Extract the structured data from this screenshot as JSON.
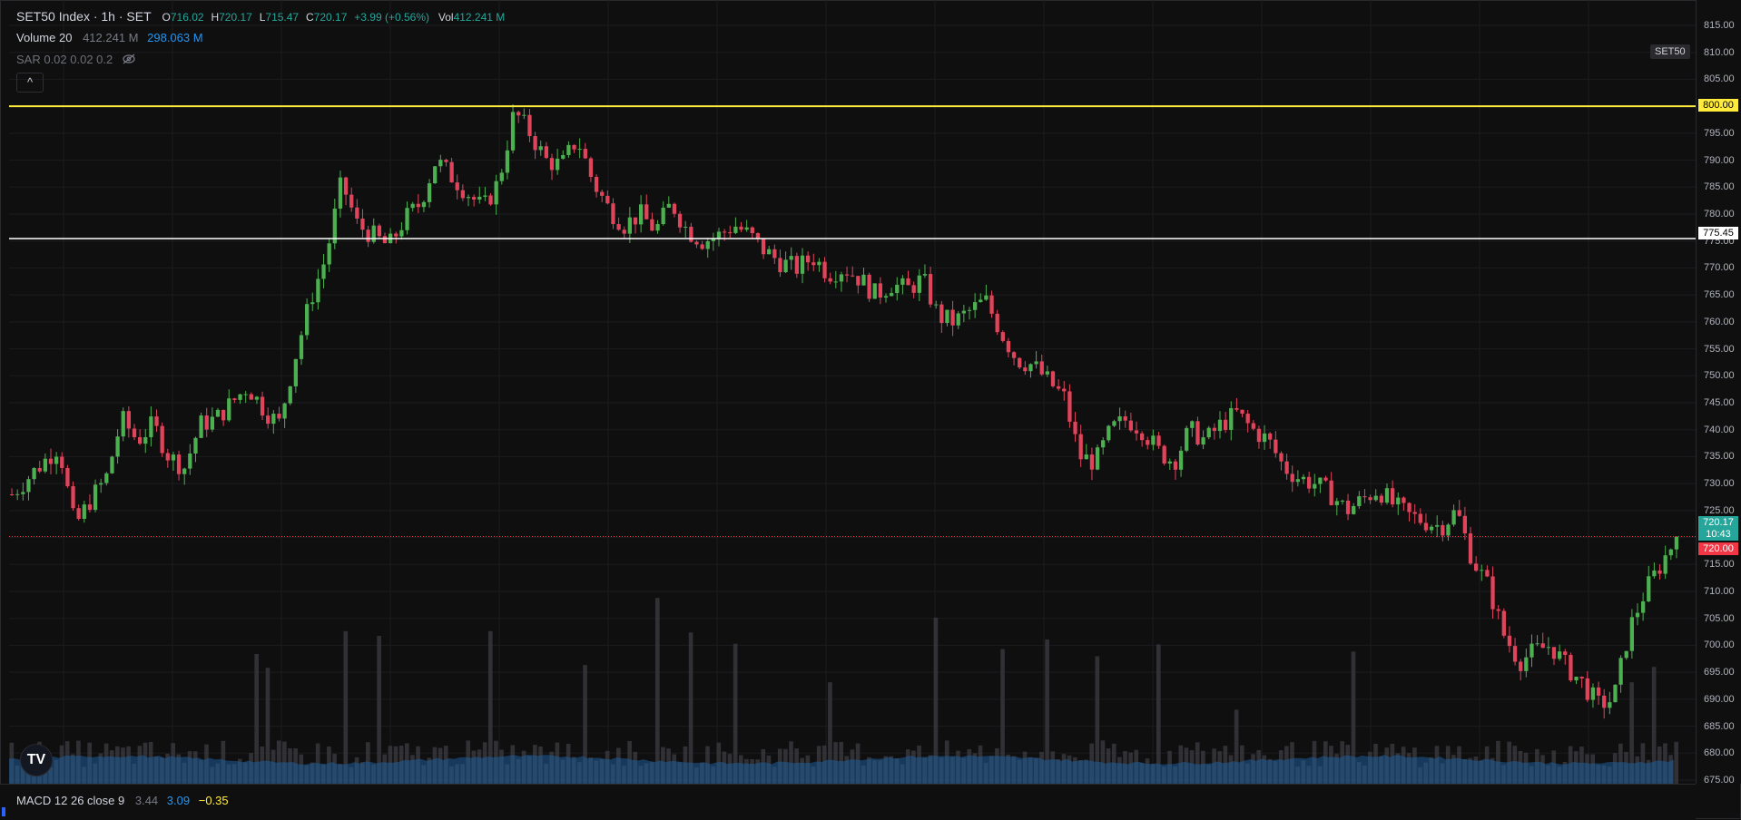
{
  "legend": {
    "symbol": "SET50 Index · 1h · SET",
    "o_label": "O",
    "o_val": "716.02",
    "h_label": "H",
    "h_val": "720.17",
    "l_label": "L",
    "l_val": "715.47",
    "c_label": "C",
    "c_val": "720.17",
    "change": "+3.99 (+0.56%)",
    "vol_label": "Vol",
    "vol_val": "412.241 M",
    "volume_ind": "Volume 20",
    "volume_v1": "412.241 M",
    "volume_v2": "298.063 M",
    "sar": "SAR 0.02 0.02 0.2",
    "collapse_icon": "^"
  },
  "symbol_tag": "SET50",
  "price_axis": {
    "ticks": [
      "815.00",
      "810.00",
      "805.00",
      "800.00",
      "795.00",
      "790.00",
      "785.00",
      "780.00",
      "775.00",
      "770.00",
      "765.00",
      "760.00",
      "755.00",
      "750.00",
      "745.00",
      "740.00",
      "735.00",
      "730.00",
      "725.00",
      "720.00",
      "715.00",
      "710.00",
      "705.00",
      "700.00",
      "695.00",
      "690.00",
      "685.00",
      "680.00",
      "675.00"
    ],
    "tags": {
      "yellow": "800.00",
      "white": "775.45",
      "last": "720.17",
      "countdown": "10:43",
      "red": "720.00"
    }
  },
  "macd": {
    "label": "MACD 12 26 close 9",
    "v1": "3.44",
    "v2": "3.09",
    "v3": "−0.35"
  },
  "logo": "TV",
  "colors": {
    "up": "#26a69a",
    "down": "#ef5350",
    "candle_up": "#4caf50",
    "candle_down": "#e0445b",
    "yellow_line": "#ffeb3b",
    "white_line": "#ffffff",
    "red_line": "#f23645",
    "volume_ma": "#2962ff",
    "macd_blue": "#2196f3",
    "macd_orange": "#ffeb3b"
  },
  "chart_data": {
    "type": "candlestick",
    "ylim": [
      672,
      817
    ],
    "horizontal_lines": [
      800.0,
      775.45,
      720.17
    ],
    "close_path": [
      728,
      731,
      734,
      737,
      722,
      727,
      731,
      742,
      738,
      741,
      735,
      733,
      741,
      742,
      745,
      748,
      744,
      741,
      753,
      764,
      772,
      786,
      778,
      776,
      774,
      779,
      782,
      790,
      787,
      784,
      781,
      786,
      799,
      795,
      790,
      789,
      794,
      786,
      781,
      778,
      780,
      777,
      782,
      777,
      775,
      776,
      778,
      776,
      773,
      771,
      770,
      772,
      769,
      770,
      768,
      765,
      767,
      766,
      768,
      761,
      760,
      762,
      764,
      758,
      753,
      752,
      749,
      746,
      735,
      734,
      740,
      742,
      740,
      736,
      734,
      740,
      738,
      741,
      743,
      740,
      738,
      733,
      731,
      730,
      728,
      725,
      727,
      729,
      726,
      724,
      723,
      722,
      725,
      716,
      711,
      702,
      697,
      699,
      700,
      696,
      693,
      689,
      690,
      703,
      710,
      715,
      720.17
    ]
  }
}
